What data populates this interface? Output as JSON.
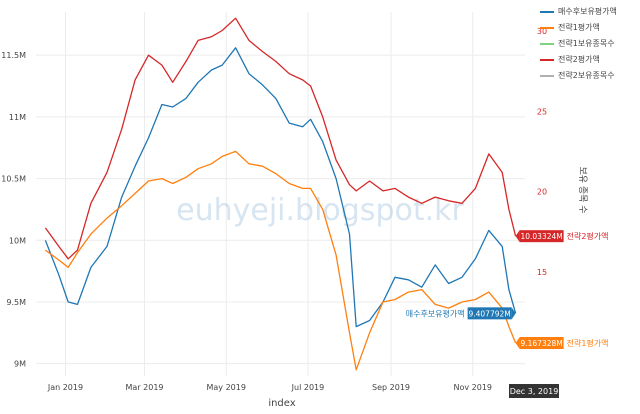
{
  "chart_data": {
    "type": "line",
    "xlabel": "index",
    "y2label": "보유 종목 수",
    "watermark": "euhyeji.blogspot.kr",
    "x_ticks": [
      "Jan 2019",
      "Mar 2019",
      "May 2019",
      "Jul 2019",
      "Sep 2019",
      "Nov 2019"
    ],
    "x_range": [
      "2018-12-10",
      "2019-12-10"
    ],
    "y_ticks": [
      "9M",
      "9.5M",
      "10M",
      "10.5M",
      "11M",
      "11.5M"
    ],
    "y_range": [
      8900000,
      11850000
    ],
    "y2_ticks": [
      "15",
      "20",
      "25",
      "30"
    ],
    "y2_range": [
      8.5,
      31.2
    ],
    "hover_x_label": "Dec 3, 2019",
    "legend": [
      {
        "name": "매수후보유평가액",
        "color": "#1f77b4"
      },
      {
        "name": "전략1평가액",
        "color": "#ff7f0e"
      },
      {
        "name": "전략1보유종목수",
        "color": "#7fd27f"
      },
      {
        "name": "전략2평가액",
        "color": "#d62728"
      },
      {
        "name": "전략2보유종목수",
        "color": "#b0b0b0"
      }
    ],
    "hover_labels": [
      {
        "series": "전략2평가액",
        "value": "10.03324M",
        "color": "#d62728"
      },
      {
        "series": "매수후보유평가액",
        "value": "9.407792M",
        "color": "#1f77b4"
      },
      {
        "series": "전략1평가액",
        "value": "9.167328M",
        "color": "#ff7f0e"
      }
    ],
    "series": [
      {
        "name": "매수후보유평가액",
        "color": "#1f77b4",
        "axis": "y",
        "x": [
          "2018-12-17",
          "2018-12-27",
          "2019-01-03",
          "2019-01-10",
          "2019-01-20",
          "2019-02-01",
          "2019-02-12",
          "2019-02-22",
          "2019-03-04",
          "2019-03-14",
          "2019-03-22",
          "2019-04-01",
          "2019-04-10",
          "2019-04-20",
          "2019-04-28",
          "2019-05-08",
          "2019-05-18",
          "2019-05-28",
          "2019-06-07",
          "2019-06-17",
          "2019-06-27",
          "2019-07-03",
          "2019-07-12",
          "2019-07-22",
          "2019-08-01",
          "2019-08-06",
          "2019-08-16",
          "2019-08-26",
          "2019-09-04",
          "2019-09-14",
          "2019-09-24",
          "2019-10-04",
          "2019-10-14",
          "2019-10-24",
          "2019-11-03",
          "2019-11-13",
          "2019-11-23",
          "2019-11-28",
          "2019-12-03"
        ],
        "y": [
          10000000,
          9720000,
          9500000,
          9480000,
          9780000,
          9950000,
          10350000,
          10600000,
          10830000,
          11100000,
          11080000,
          11150000,
          11280000,
          11380000,
          11420000,
          11560000,
          11350000,
          11260000,
          11150000,
          10950000,
          10920000,
          10980000,
          10800000,
          10500000,
          10050000,
          9300000,
          9350000,
          9500000,
          9700000,
          9680000,
          9620000,
          9800000,
          9650000,
          9700000,
          9850000,
          10080000,
          9950000,
          9600000,
          9407792
        ]
      },
      {
        "name": "전략1평가액",
        "color": "#ff7f0e",
        "axis": "y",
        "x": [
          "2018-12-17",
          "2018-12-27",
          "2019-01-03",
          "2019-01-10",
          "2019-01-20",
          "2019-02-01",
          "2019-02-12",
          "2019-02-22",
          "2019-03-04",
          "2019-03-14",
          "2019-03-22",
          "2019-04-01",
          "2019-04-10",
          "2019-04-20",
          "2019-04-28",
          "2019-05-08",
          "2019-05-18",
          "2019-05-28",
          "2019-06-07",
          "2019-06-17",
          "2019-06-27",
          "2019-07-03",
          "2019-07-12",
          "2019-07-22",
          "2019-08-01",
          "2019-08-06",
          "2019-08-16",
          "2019-08-26",
          "2019-09-04",
          "2019-09-14",
          "2019-09-24",
          "2019-10-04",
          "2019-10-14",
          "2019-10-24",
          "2019-11-03",
          "2019-11-13",
          "2019-11-23",
          "2019-11-28",
          "2019-12-03"
        ],
        "y": [
          9920000,
          9840000,
          9780000,
          9900000,
          10050000,
          10180000,
          10280000,
          10380000,
          10480000,
          10500000,
          10460000,
          10510000,
          10580000,
          10620000,
          10680000,
          10720000,
          10620000,
          10600000,
          10540000,
          10460000,
          10420000,
          10420000,
          10250000,
          9880000,
          9250000,
          8950000,
          9250000,
          9500000,
          9520000,
          9580000,
          9600000,
          9480000,
          9450000,
          9500000,
          9520000,
          9580000,
          9450000,
          9300000,
          9167328
        ]
      },
      {
        "name": "전략2평가액",
        "color": "#d62728",
        "axis": "y",
        "x": [
          "2018-12-17",
          "2018-12-27",
          "2019-01-03",
          "2019-01-10",
          "2019-01-20",
          "2019-02-01",
          "2019-02-12",
          "2019-02-22",
          "2019-03-04",
          "2019-03-14",
          "2019-03-22",
          "2019-04-01",
          "2019-04-10",
          "2019-04-20",
          "2019-04-28",
          "2019-05-08",
          "2019-05-18",
          "2019-05-28",
          "2019-06-07",
          "2019-06-17",
          "2019-06-27",
          "2019-07-03",
          "2019-07-12",
          "2019-07-22",
          "2019-08-01",
          "2019-08-06",
          "2019-08-16",
          "2019-08-26",
          "2019-09-04",
          "2019-09-14",
          "2019-09-24",
          "2019-10-04",
          "2019-10-14",
          "2019-10-24",
          "2019-11-03",
          "2019-11-13",
          "2019-11-23",
          "2019-11-28",
          "2019-12-03"
        ],
        "y": [
          10100000,
          9950000,
          9850000,
          9920000,
          10300000,
          10550000,
          10900000,
          11300000,
          11500000,
          11420000,
          11280000,
          11450000,
          11620000,
          11650000,
          11700000,
          11800000,
          11620000,
          11530000,
          11450000,
          11350000,
          11300000,
          11250000,
          11000000,
          10650000,
          10450000,
          10400000,
          10480000,
          10400000,
          10420000,
          10350000,
          10300000,
          10350000,
          10320000,
          10300000,
          10420000,
          10700000,
          10550000,
          10250000,
          10033240
        ]
      }
    ]
  }
}
